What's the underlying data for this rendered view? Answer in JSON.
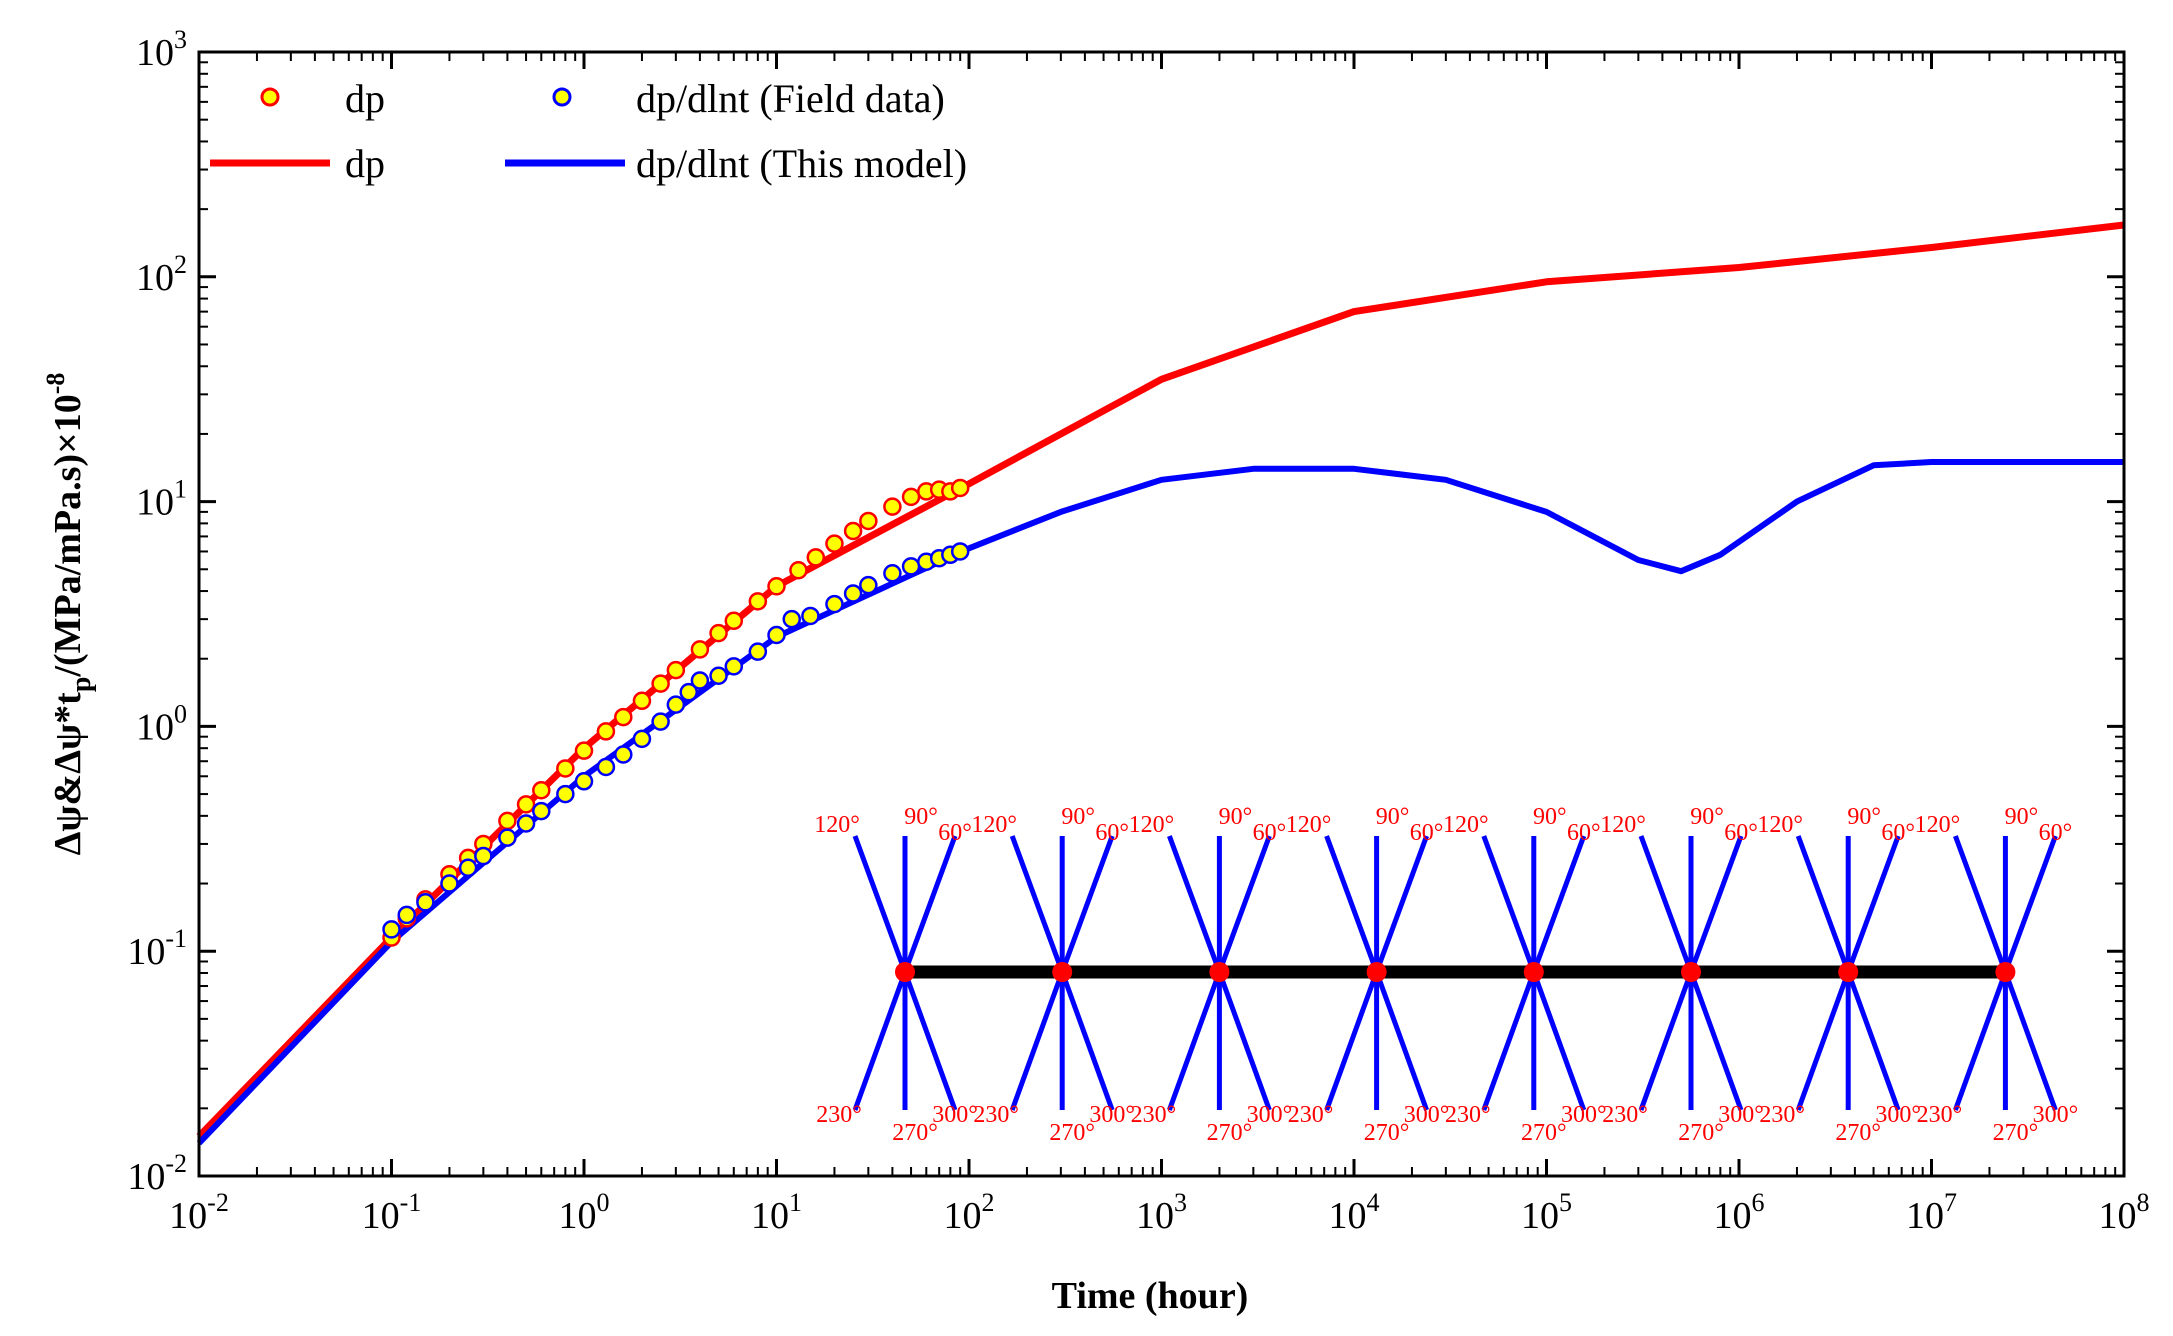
{
  "chart_data": {
    "type": "line",
    "title": "",
    "xlabel": "Time (hour)",
    "ylabel": {
      "main": "Δψ&Δψ*t",
      "sub": "p",
      "unit": "/(MPa/mPa.s)×10",
      "unit_exp": "-8"
    },
    "x_scale": "log",
    "y_scale": "log",
    "xlim": [
      0.01,
      100000000
    ],
    "ylim": [
      0.01,
      1000
    ],
    "x_ticks": [
      {
        "base": "10",
        "exp": "-2",
        "value": 0.01
      },
      {
        "base": "10",
        "exp": "-1",
        "value": 0.1
      },
      {
        "base": "10",
        "exp": "0",
        "value": 1
      },
      {
        "base": "10",
        "exp": "1",
        "value": 10
      },
      {
        "base": "10",
        "exp": "2",
        "value": 100
      },
      {
        "base": "10",
        "exp": "3",
        "value": 1000
      },
      {
        "base": "10",
        "exp": "4",
        "value": 10000
      },
      {
        "base": "10",
        "exp": "5",
        "value": 100000
      },
      {
        "base": "10",
        "exp": "6",
        "value": 1000000
      },
      {
        "base": "10",
        "exp": "7",
        "value": 10000000
      },
      {
        "base": "10",
        "exp": "8",
        "value": 100000000
      }
    ],
    "y_ticks": [
      {
        "base": "10",
        "exp": "-2",
        "value": 0.01
      },
      {
        "base": "10",
        "exp": "-1",
        "value": 0.1
      },
      {
        "base": "10",
        "exp": "0",
        "value": 1
      },
      {
        "base": "10",
        "exp": "1",
        "value": 10
      },
      {
        "base": "10",
        "exp": "2",
        "value": 100
      },
      {
        "base": "10",
        "exp": "3",
        "value": 1000
      }
    ],
    "legend_position": "top-left",
    "series": [
      {
        "name": "dp",
        "kind": "scatter",
        "marker_fill": "#ffff00",
        "marker_edge": "#ff0000",
        "x": [
          0.1,
          0.12,
          0.15,
          0.2,
          0.25,
          0.3,
          0.4,
          0.5,
          0.6,
          0.8,
          1,
          1.3,
          1.6,
          2,
          2.5,
          3,
          4,
          5,
          6,
          8,
          10,
          13,
          16,
          20,
          25,
          30,
          40,
          50,
          60,
          70,
          80,
          90
        ],
        "y": [
          0.115,
          0.14,
          0.17,
          0.22,
          0.26,
          0.3,
          0.38,
          0.45,
          0.52,
          0.65,
          0.78,
          0.95,
          1.1,
          1.3,
          1.55,
          1.78,
          2.2,
          2.6,
          2.95,
          3.6,
          4.2,
          4.95,
          5.65,
          6.5,
          7.4,
          8.2,
          9.5,
          10.5,
          11.1,
          11.3,
          11.1,
          11.5
        ]
      },
      {
        "name": "dp/dlnt (Field data)",
        "kind": "scatter",
        "marker_fill": "#ffff00",
        "marker_edge": "#0000ff",
        "x": [
          0.1,
          0.12,
          0.15,
          0.2,
          0.25,
          0.3,
          0.4,
          0.5,
          0.6,
          0.8,
          1,
          1.3,
          1.6,
          2,
          2.5,
          3,
          3.5,
          4,
          5,
          6,
          8,
          10,
          12,
          15,
          20,
          25,
          30,
          40,
          50,
          60,
          70,
          80,
          90
        ],
        "y": [
          0.125,
          0.145,
          0.165,
          0.2,
          0.235,
          0.265,
          0.32,
          0.37,
          0.42,
          0.5,
          0.57,
          0.66,
          0.75,
          0.88,
          1.05,
          1.25,
          1.42,
          1.6,
          1.68,
          1.85,
          2.15,
          2.55,
          3.0,
          3.1,
          3.5,
          3.9,
          4.25,
          4.8,
          5.15,
          5.4,
          5.6,
          5.8,
          6.0
        ]
      },
      {
        "name": "dp",
        "kind": "line",
        "color": "#ff0000",
        "x": [
          0.01,
          0.1,
          1,
          10,
          100,
          1000,
          10000,
          100000,
          1000000,
          10000000,
          100000000
        ],
        "y": [
          0.015,
          0.115,
          0.8,
          4.2,
          12.0,
          35.0,
          70.0,
          95.0,
          110.0,
          135.0,
          170.0
        ]
      },
      {
        "name": "dp/dlnt (This model)",
        "kind": "line",
        "color": "#0000ff",
        "x": [
          0.01,
          0.1,
          1,
          10,
          100,
          300,
          1000,
          3000,
          10000,
          30000,
          100000,
          300000,
          500000,
          800000,
          2000000,
          5000000,
          10000000,
          100000000
        ],
        "y": [
          0.014,
          0.11,
          0.6,
          2.5,
          6.2,
          9.0,
          12.5,
          14.0,
          14.0,
          12.5,
          9.0,
          5.5,
          4.9,
          5.8,
          10.0,
          14.5,
          15.0,
          15.0
        ]
      }
    ],
    "legend": [
      {
        "label": "dp",
        "kind": "scatter",
        "marker_fill": "#ffff00",
        "marker_edge": "#ff0000"
      },
      {
        "label": "dp/dlnt (Field data)",
        "kind": "scatter",
        "marker_fill": "#ffff00",
        "marker_edge": "#0000ff"
      },
      {
        "label": "dp",
        "kind": "line",
        "color": "#ff0000"
      },
      {
        "label": "dp/dlnt (This model)",
        "kind": "line",
        "color": "#0000ff"
      }
    ],
    "inset": {
      "description": "horizontal well with 8 fracture clusters",
      "cluster_count": 8,
      "well_color": "#000000",
      "fracture_color": "#0000ff",
      "point_color": "#ff0000",
      "label_color": "#ff0000",
      "top_labels": [
        "120°",
        "90°",
        "60°"
      ],
      "bottom_labels": [
        "230°",
        "270°",
        "300°"
      ]
    }
  }
}
